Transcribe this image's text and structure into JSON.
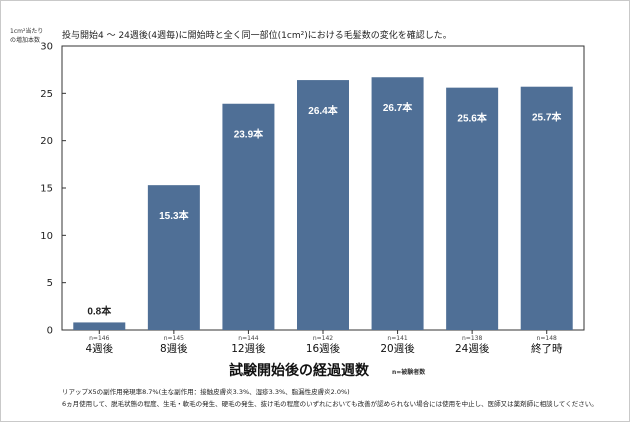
{
  "chart_data": {
    "type": "bar",
    "title": "",
    "subtitle": "投与開始4 〜 24週後(4週毎)に開始時と全く同一部位(1cm²)における毛髪数の変化を確認した。",
    "ylabel": "1cm²当たり\nの増加本数",
    "xlabel": "試験開始後の経過週数",
    "xlabel_note": "n=被験者数",
    "categories": [
      "4週後",
      "8週後",
      "12週後",
      "16週後",
      "20週後",
      "24週後",
      "終了時"
    ],
    "values": [
      0.8,
      15.3,
      23.9,
      26.4,
      26.7,
      25.6,
      25.7
    ],
    "data_labels": [
      "0.8本",
      "15.3本",
      "23.9本",
      "26.4本",
      "26.7本",
      "25.6本",
      "25.7本"
    ],
    "n_labels": [
      "n=146",
      "n=145",
      "n=144",
      "n=142",
      "n=141",
      "n=138",
      "n=148"
    ],
    "yticks": [
      0,
      5,
      10,
      15,
      20,
      25,
      30
    ],
    "ylim": [
      0,
      30
    ],
    "grid": false,
    "bar_color": "#4f6f96"
  },
  "footnotes": [
    "リアップX5の副作用発現率8.7%(主な副作用：接触皮膚炎3.3%、湿疹3.3%、脂漏性皮膚炎2.0%)",
    "6ヵ月使用して、脱毛状態の程度、生毛・軟毛の発生、硬毛の発生、抜け毛の程度のいずれにおいても改善が認められない場合には使用を中止し、医師又は薬剤師に相談してください。"
  ]
}
